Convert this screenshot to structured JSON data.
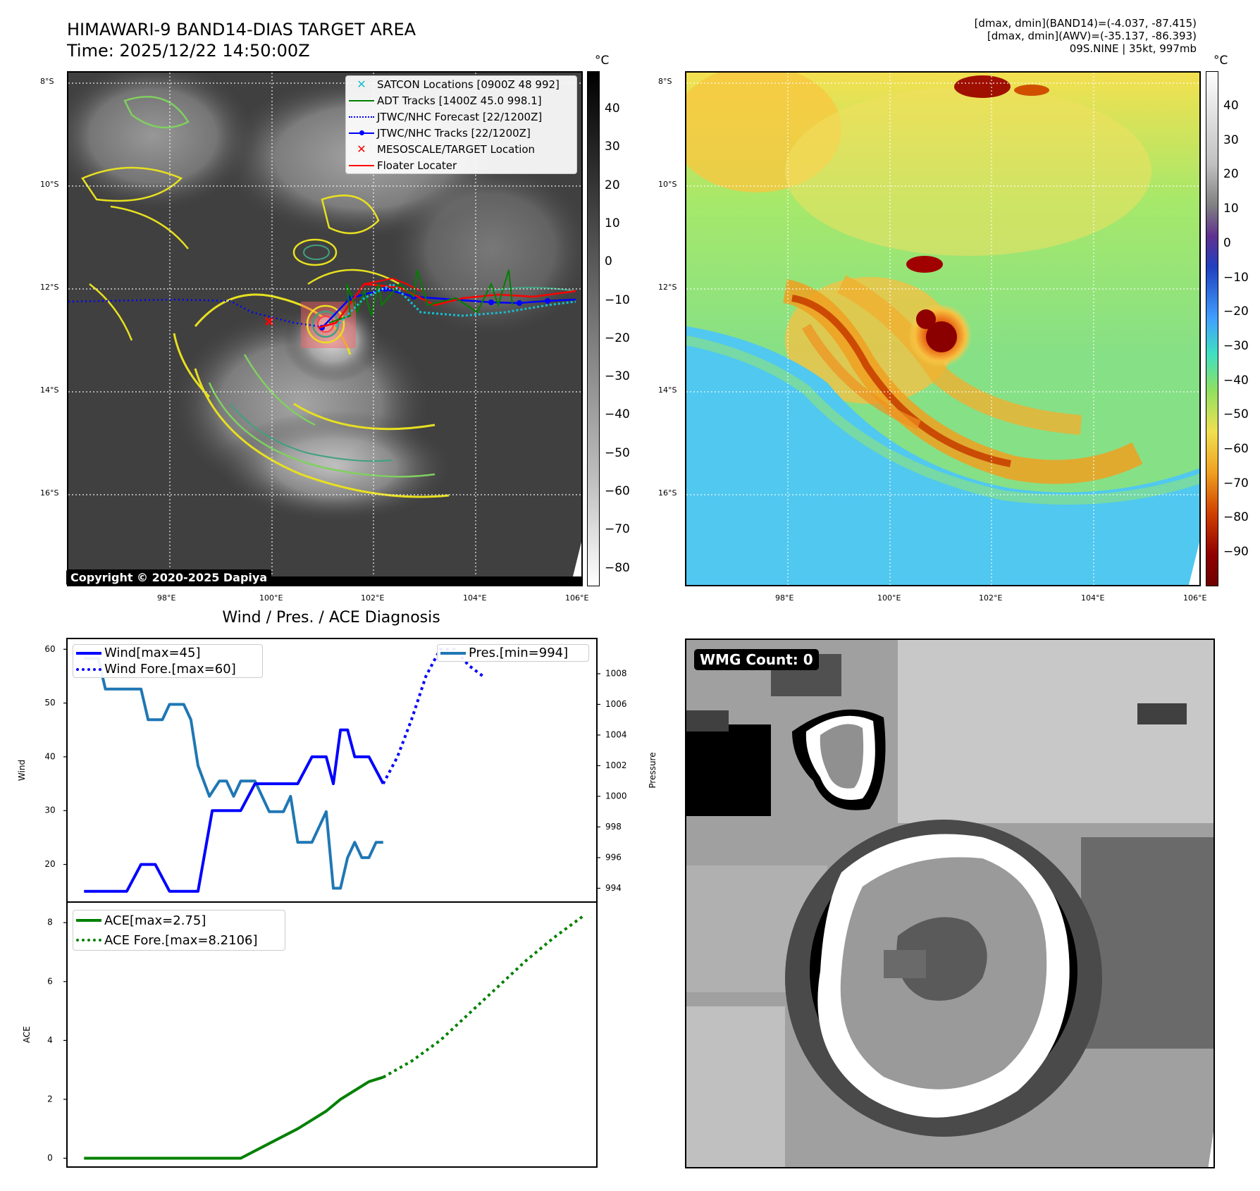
{
  "header": {
    "title": "HIMAWARI-9 BAND14-DIAS TARGET AREA",
    "time": "Time: 2025/12/22 14:50:00Z",
    "info_line1": "[dmax, dmin](BAND14)=(-4.037, -87.415)",
    "info_line2": "[dmax, dmin](AWV)=(-35.137, -86.393)",
    "info_line3": "09S.NINE | 35kt, 997mb"
  },
  "map_axes": {
    "lat_labels": [
      "8°S",
      "10°S",
      "12°S",
      "14°S",
      "16°S"
    ],
    "lon_labels": [
      "98°E",
      "100°E",
      "102°E",
      "104°E",
      "106°E"
    ]
  },
  "ir_panel": {
    "copyright": "Copyright © 2020-2025 Dapiya",
    "colorbar_unit": "°C",
    "colorbar_ticks": [
      "40",
      "30",
      "20",
      "10",
      "0",
      "−10",
      "−20",
      "−30",
      "−40",
      "−50",
      "−60",
      "−70",
      "−80"
    ],
    "legend": [
      {
        "label": "SATCON Locations [0900Z 48 992]",
        "symbol": "x-marker",
        "color": "#17becf"
      },
      {
        "label": "ADT Tracks [1400Z 45.0 998.1]",
        "symbol": "solid-line",
        "color": "#008000"
      },
      {
        "label": "JTWC/NHC Forecast [22/1200Z]",
        "symbol": "dotted-line",
        "color": "#0000ff"
      },
      {
        "label": "JTWC/NHC Tracks [22/1200Z]",
        "symbol": "line-dot",
        "color": "#0000ff"
      },
      {
        "label": "MESOSCALE/TARGET Location",
        "symbol": "x-marker",
        "color": "#ff0000"
      },
      {
        "label": "Floater Locater",
        "symbol": "solid-line",
        "color": "#ff0000"
      }
    ]
  },
  "awv_panel": {
    "colorbar_unit": "°C",
    "colorbar_ticks": [
      "40",
      "30",
      "20",
      "10",
      "0",
      "−10",
      "−20",
      "−30",
      "−40",
      "−50",
      "−60",
      "−70",
      "−80",
      "−90"
    ]
  },
  "wmg_panel": {
    "label": "WMG Count: 0"
  },
  "chart_data": [
    {
      "type": "line",
      "title": "Wind / Pres. / ACE Diagnosis",
      "ylabel": "Wind",
      "y2label": "Pressure",
      "ylim": [
        13,
        62
      ],
      "y2lim": [
        993.1,
        1010.3
      ],
      "yticks": [
        20,
        30,
        40,
        50,
        60
      ],
      "y2ticks": [
        994,
        996,
        998,
        1000,
        1002,
        1004,
        1006,
        1008
      ],
      "series": [
        {
          "name": "Wind[max=45]",
          "axis": "left",
          "style": "solid",
          "color": "#0000ff",
          "x": [
            0,
            3,
            4,
            5,
            6,
            8,
            9,
            10,
            11,
            12,
            13,
            14,
            15,
            16,
            17,
            17.5,
            18,
            18.5,
            19,
            20,
            21
          ],
          "values": [
            15,
            15,
            20,
            20,
            15,
            15,
            30,
            30,
            30,
            35,
            35,
            35,
            35,
            40,
            40,
            35,
            45,
            45,
            40,
            40,
            35
          ]
        },
        {
          "name": "Wind Fore.[max=60]",
          "axis": "left",
          "style": "dotted",
          "color": "#0000ff",
          "x": [
            21,
            22,
            23,
            24,
            25,
            26,
            27,
            28
          ],
          "values": [
            35,
            40,
            47,
            55,
            60,
            60,
            57,
            55
          ]
        },
        {
          "name": "Pres.[min=994]",
          "axis": "right",
          "style": "solid",
          "color": "#1f77b4",
          "x": [
            0,
            1,
            1.5,
            2,
            4,
            4.5,
            5.5,
            6,
            7,
            7.5,
            8,
            8.8,
            9.5,
            10,
            10.5,
            11,
            11.5,
            12,
            13,
            14,
            14.5,
            15,
            16,
            17,
            17.5,
            18,
            18.5,
            19,
            19.5,
            20,
            20.5,
            21
          ],
          "values": [
            1009,
            1009,
            1007,
            1007,
            1007,
            1005,
            1005,
            1006,
            1006,
            1005,
            1002,
            1000,
            1001,
            1001,
            1000,
            1001,
            1001,
            1001,
            999,
            999,
            1000,
            997,
            997,
            999,
            994,
            994,
            996,
            997,
            996,
            996,
            997,
            997
          ]
        }
      ]
    },
    {
      "type": "line",
      "ylabel": "ACE",
      "ylim": [
        -0.3,
        8.7
      ],
      "yticks": [
        0,
        2,
        4,
        6,
        8
      ],
      "series": [
        {
          "name": "ACE[max=2.75]",
          "style": "solid",
          "color": "#008000",
          "x": [
            0,
            4,
            8,
            11,
            13,
            15,
            16,
            17,
            18,
            19,
            20,
            21
          ],
          "values": [
            0,
            0,
            0,
            0,
            0.5,
            1,
            1.3,
            1.6,
            2.0,
            2.3,
            2.6,
            2.75
          ]
        },
        {
          "name": "ACE Fore.[max=8.2106]",
          "style": "dotted",
          "color": "#008000",
          "x": [
            21,
            23,
            25,
            27,
            29,
            31,
            33,
            35
          ],
          "values": [
            2.75,
            3.3,
            4.0,
            4.9,
            5.8,
            6.7,
            7.5,
            8.2106
          ]
        }
      ]
    }
  ],
  "colors": {
    "contour_yellow": "#e8e020",
    "contour_green": "#80d060",
    "contour_teal": "#40a080",
    "satcon": "#17becf",
    "adt": "#008000",
    "jtwc": "#0000ff",
    "target": "#ff0000"
  }
}
